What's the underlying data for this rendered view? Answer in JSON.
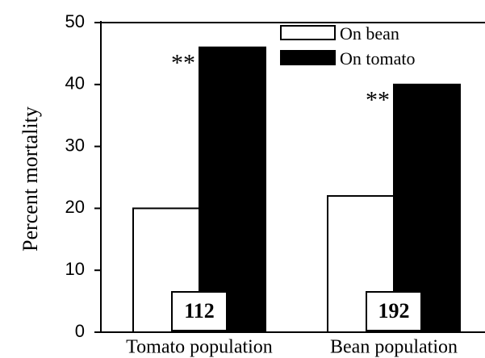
{
  "chart_data": {
    "type": "bar",
    "y_label": "Percent mortality",
    "categories": [
      "Tomato population",
      "Bean population"
    ],
    "series": [
      {
        "name": "On bean",
        "color": "#ffffff",
        "values": [
          20,
          22
        ]
      },
      {
        "name": "On tomato",
        "color": "#000000",
        "values": [
          46,
          40
        ]
      }
    ],
    "significance": [
      "**",
      "**"
    ],
    "sample_sizes": [
      112,
      192
    ],
    "ylim": [
      0,
      50
    ],
    "yticks": [
      0,
      10,
      20,
      30,
      40,
      50
    ],
    "legend": "top-right"
  }
}
